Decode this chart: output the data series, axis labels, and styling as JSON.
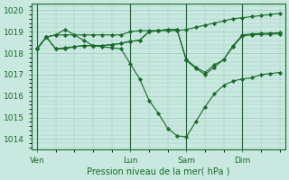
{
  "title": "",
  "xlabel": "Pression niveau de la mer( hPa )",
  "ylabel": "",
  "bg_color": "#c8e8e0",
  "grid_color": "#a0c8c0",
  "line_color": "#1a6b2a",
  "marker_color": "#1a6b2a",
  "ylim": [
    1013.5,
    1020.3
  ],
  "yticks": [
    1014,
    1015,
    1016,
    1017,
    1018,
    1019,
    1020
  ],
  "xtick_labels": [
    "Ven",
    "Lun",
    "Sam",
    "Dim"
  ],
  "vline_days": [
    0,
    5,
    8,
    11
  ],
  "num_points": 14,
  "series": [
    {
      "x": [
        0,
        0.5,
        1,
        1.5,
        2,
        2.5,
        3,
        3.5,
        4,
        4.5,
        5,
        5.5,
        6,
        6.5,
        7,
        7.5,
        8,
        8.5,
        9,
        9.5,
        10,
        10.5,
        11,
        11.5,
        12,
        12.5,
        13
      ],
      "y": [
        1018.2,
        1018.75,
        1018.85,
        1018.85,
        1018.85,
        1018.85,
        1018.85,
        1018.85,
        1018.85,
        1018.85,
        1019.0,
        1019.05,
        1019.05,
        1019.05,
        1019.05,
        1019.05,
        1019.1,
        1019.2,
        1019.3,
        1019.4,
        1019.5,
        1019.6,
        1019.65,
        1019.7,
        1019.75,
        1019.8,
        1019.85
      ]
    },
    {
      "x": [
        0,
        0.5,
        1,
        1.5,
        2,
        2.5,
        3,
        3.5,
        4,
        4.5,
        5,
        5.5,
        6,
        6.5,
        7,
        7.5,
        8,
        8.5,
        9,
        9.5,
        10,
        10.5,
        11,
        11.5,
        12,
        12.5,
        13
      ],
      "y": [
        1018.2,
        1018.75,
        1018.85,
        1019.1,
        1018.85,
        1018.6,
        1018.35,
        1018.3,
        1018.25,
        1018.2,
        1017.5,
        1016.8,
        1015.8,
        1015.2,
        1014.5,
        1014.15,
        1014.1,
        1014.8,
        1015.5,
        1016.1,
        1016.5,
        1016.7,
        1016.8,
        1016.85,
        1017.0,
        1017.05,
        1017.1
      ]
    },
    {
      "x": [
        0,
        0.5,
        1,
        1.5,
        2,
        2.5,
        3,
        3.5,
        4,
        4.5,
        5,
        5.5,
        6,
        6.5,
        7,
        7.5,
        8,
        8.5,
        9,
        9.5,
        10,
        10.5,
        11,
        11.5,
        12,
        12.5,
        13
      ],
      "y": [
        1018.2,
        1018.75,
        1018.2,
        1018.25,
        1018.3,
        1018.35,
        1018.35,
        1018.35,
        1018.4,
        1018.45,
        1018.55,
        1018.6,
        1019.0,
        1019.05,
        1019.1,
        1019.1,
        1017.65,
        1017.3,
        1017.0,
        1017.35,
        1017.7,
        1018.3,
        1018.8,
        1018.85,
        1018.87,
        1018.88,
        1018.9
      ]
    },
    {
      "x": [
        0,
        0.5,
        1,
        1.5,
        2,
        2.5,
        3,
        3.5,
        4,
        4.5,
        5,
        5.5,
        6,
        6.5,
        7,
        7.5,
        8,
        8.5,
        9,
        9.5,
        10,
        10.5,
        11,
        11.5,
        12,
        12.5,
        13
      ],
      "y": [
        1018.2,
        1018.75,
        1018.2,
        1018.2,
        1018.3,
        1018.35,
        1018.35,
        1018.35,
        1018.4,
        1018.45,
        1018.55,
        1018.6,
        1019.0,
        1019.05,
        1019.1,
        1019.1,
        1017.7,
        1017.35,
        1017.1,
        1017.45,
        1017.7,
        1018.35,
        1018.85,
        1018.9,
        1018.92,
        1018.93,
        1018.95
      ]
    }
  ],
  "xtick_x": [
    0,
    5,
    8,
    11
  ],
  "xlim": [
    -0.3,
    13.3
  ]
}
